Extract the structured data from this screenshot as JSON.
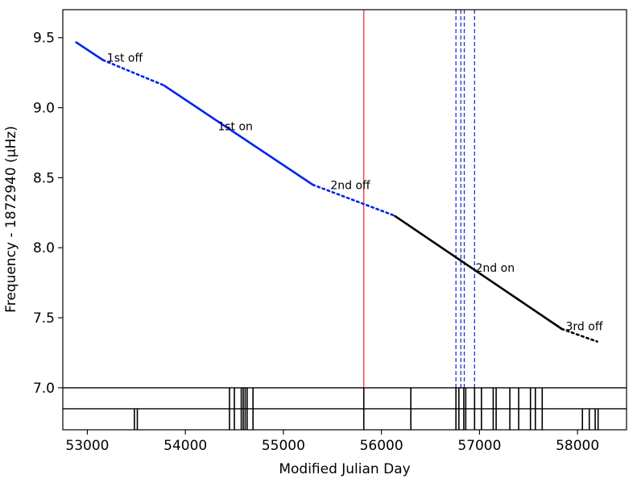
{
  "chart_data": {
    "type": "line",
    "title": "",
    "xlabel": "Modified Julian Day",
    "ylabel": "Frequency - 1872940 (μHz)",
    "xlim": [
      52750,
      58500
    ],
    "ylim": [
      6.7,
      9.7
    ],
    "xticks": [
      53000,
      54000,
      55000,
      56000,
      57000,
      58000
    ],
    "xtick_labels": [
      "53000",
      "54000",
      "55000",
      "56000",
      "57000",
      "58000"
    ],
    "yticks": [
      7.0,
      7.5,
      8.0,
      8.5,
      9.0,
      9.5
    ],
    "ytick_labels": [
      "7.0",
      "7.5",
      "8.0",
      "8.5",
      "9.0",
      "9.5"
    ],
    "grid": false,
    "segments": [
      {
        "points": [
          [
            52880,
            9.47
          ],
          [
            53160,
            9.34
          ]
        ],
        "style": "solid",
        "color": "#0022ee"
      },
      {
        "points": [
          [
            53160,
            9.34
          ],
          [
            53780,
            9.16
          ]
        ],
        "style": "dotted",
        "color": "#0022ee"
      },
      {
        "points": [
          [
            53780,
            9.16
          ],
          [
            55300,
            8.45
          ]
        ],
        "style": "solid",
        "color": "#0022ee"
      },
      {
        "points": [
          [
            55300,
            8.45
          ],
          [
            56130,
            8.23
          ]
        ],
        "style": "dotted",
        "color": "#0022ee"
      },
      {
        "points": [
          [
            56130,
            8.23
          ],
          [
            57840,
            7.42
          ]
        ],
        "style": "solid",
        "color": "#000000"
      },
      {
        "points": [
          [
            57840,
            7.42
          ],
          [
            58200,
            7.33
          ]
        ],
        "style": "dotted",
        "color": "#000000"
      }
    ],
    "annotations": [
      {
        "text": "1st off",
        "x": 53200,
        "y": 9.33
      },
      {
        "text": "1st on",
        "x": 54330,
        "y": 8.84
      },
      {
        "text": "2nd off",
        "x": 55480,
        "y": 8.42
      },
      {
        "text": "2nd on",
        "x": 56960,
        "y": 7.83
      },
      {
        "text": "3rd off",
        "x": 57880,
        "y": 7.41
      }
    ],
    "vlines": [
      {
        "x": 55820,
        "color": "#ee3333",
        "style": "solid"
      },
      {
        "x": 56760,
        "color": "#2233cc",
        "style": "dashed"
      },
      {
        "x": 56810,
        "color": "#2233cc",
        "style": "dashed"
      },
      {
        "x": 56845,
        "color": "#2233cc",
        "style": "dashed"
      },
      {
        "x": 56950,
        "color": "#2233cc",
        "style": "dashed"
      }
    ],
    "hlines": [
      {
        "y": 7.0,
        "color": "#000000"
      },
      {
        "y": 6.85,
        "color": "#000000"
      }
    ],
    "event_rows": [
      {
        "y_range": [
          6.85,
          7.0
        ],
        "x": [
          54450,
          54500,
          54570,
          54590,
          54610,
          54630,
          54690,
          55820,
          56300,
          56760,
          56790,
          56840,
          56860,
          56950,
          57020,
          57140,
          57170,
          57310,
          57400,
          57520,
          57570,
          57640
        ]
      },
      {
        "y_range": [
          6.7,
          6.85
        ],
        "x": [
          53480,
          53510,
          54450,
          54500,
          54570,
          54590,
          54610,
          54630,
          54690,
          55820,
          56300,
          56760,
          56790,
          56840,
          56860,
          56950,
          57020,
          57140,
          57170,
          57310,
          57400,
          57520,
          57570,
          57640,
          58050,
          58120,
          58180,
          58210
        ]
      }
    ]
  }
}
